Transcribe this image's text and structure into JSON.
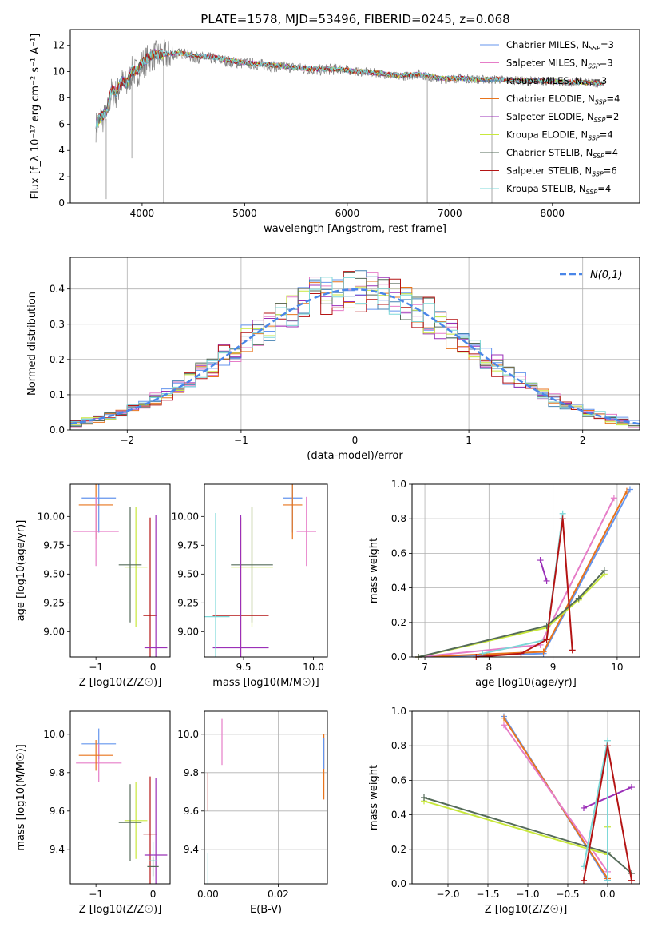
{
  "figure": {
    "title": "PLATE=1578, MJD=53496, FIBERID=0245, z=0.068",
    "models": [
      {
        "name": "Chabrier MILES",
        "nssp": "3",
        "color": "#6495ed"
      },
      {
        "name": "Salpeter MILES",
        "nssp": "3",
        "color": "#e67dc8"
      },
      {
        "name": "Kroupa MILES",
        "nssp": "3",
        "color": "#4682b4"
      },
      {
        "name": "Chabrier ELODIE",
        "nssp": "4",
        "color": "#e8741c"
      },
      {
        "name": "Salpeter ELODIE",
        "nssp": "2",
        "color": "#9b30b8"
      },
      {
        "name": "Kroupa ELODIE",
        "nssp": "4",
        "color": "#c8e83c"
      },
      {
        "name": "Chabrier STELIB",
        "nssp": "4",
        "color": "#556b5a"
      },
      {
        "name": "Salpeter STELIB",
        "nssp": "6",
        "color": "#b41414"
      },
      {
        "name": "Kroupa STELIB",
        "nssp": "4",
        "color": "#7dd8d8"
      }
    ]
  },
  "chart_data": [
    {
      "id": "spectrum",
      "type": "line",
      "xlabel": "wavelength [Angstrom, rest frame]",
      "ylabel": "Flux [f_λ 10⁻¹⁷ erg cm⁻² s⁻¹ A⁻¹]",
      "xlim": [
        3300,
        8850
      ],
      "ylim": [
        0,
        13.2
      ],
      "xticks": [
        4000,
        5000,
        6000,
        7000,
        8000
      ],
      "yticks": [
        0,
        2,
        4,
        6,
        8,
        10,
        12
      ],
      "grid": false,
      "legend": "right",
      "data_series": {
        "name": "data",
        "color": "#808080",
        "x": [
          3550,
          3600,
          3650,
          3700,
          3750,
          3800,
          3850,
          3900,
          3950,
          4000,
          4100,
          4200,
          4300,
          4400,
          4500,
          4700,
          4900,
          5100,
          5300,
          5500,
          5700,
          5900,
          6100,
          6300,
          6500,
          6700,
          6900,
          7100,
          7300,
          7500,
          7700,
          7900,
          8100,
          8300,
          8500
        ],
        "y": [
          5.8,
          6.5,
          6.4,
          8.4,
          8.3,
          9.2,
          8.9,
          10.0,
          9.9,
          10.6,
          11.2,
          11.2,
          11.3,
          11.4,
          11.1,
          11.0,
          10.7,
          10.6,
          10.4,
          10.3,
          10.1,
          10.2,
          10.0,
          9.9,
          9.6,
          9.8,
          9.4,
          9.5,
          9.4,
          9.4,
          9.3,
          9.3,
          9.2,
          9.2,
          9.1
        ]
      },
      "model_y": [
        6.0,
        6.6,
        6.8,
        8.6,
        8.5,
        9.3,
        9.1,
        10.1,
        10.0,
        10.7,
        11.3,
        11.3,
        11.4,
        11.4,
        11.2,
        11.1,
        10.8,
        10.6,
        10.5,
        10.3,
        10.2,
        10.2,
        10.0,
        9.9,
        9.7,
        9.8,
        9.5,
        9.5,
        9.4,
        9.4,
        9.3,
        9.3,
        9.2,
        9.2,
        9.1
      ]
    },
    {
      "id": "residuals",
      "type": "line",
      "xlabel": "(data-model)/error",
      "ylabel": "Normed distribution",
      "xlim": [
        -2.5,
        2.5
      ],
      "ylim": [
        0,
        0.49
      ],
      "xticks": [
        -2,
        -1,
        0,
        1,
        2
      ],
      "yticks": [
        0.0,
        0.1,
        0.2,
        0.3,
        0.4
      ],
      "grid": true,
      "legend": "top-right",
      "legend_label": "N(0,1)",
      "bin_width": 0.1
    },
    {
      "id": "age-vs-Z",
      "type": "scatter",
      "xlabel": "Z [log10(Z/Z☉)]",
      "ylabel": "age [log10(age/yr)]",
      "xlim": [
        -1.45,
        0.3
      ],
      "ylim": [
        8.78,
        10.28
      ],
      "xticks": [
        -1,
        0
      ],
      "yticks": [
        9.0,
        9.25,
        9.5,
        9.75,
        10.0
      ],
      "grid": false,
      "points": [
        {
          "model": 0,
          "x": -0.95,
          "y": 10.16,
          "xerr": 0.3,
          "yerr": 0.3
        },
        {
          "model": 3,
          "x": -1.0,
          "y": 10.1,
          "xerr": 0.3,
          "yerr": 0.3
        },
        {
          "model": 1,
          "x": -1.0,
          "y": 9.87,
          "xerr": 0.4,
          "yerr": 0.3
        },
        {
          "model": 5,
          "x": -0.3,
          "y": 9.56,
          "xerr": 0.2,
          "yerr": 0.52
        },
        {
          "model": 6,
          "x": -0.4,
          "y": 9.58,
          "xerr": 0.2,
          "yerr": 0.5
        },
        {
          "model": 7,
          "x": -0.05,
          "y": 9.14,
          "xerr": 0.12,
          "yerr": 0.85
        },
        {
          "model": 4,
          "x": 0.05,
          "y": 8.86,
          "xerr": 0.2,
          "yerr": 1.15
        }
      ]
    },
    {
      "id": "age-vs-mass",
      "type": "scatter",
      "xlabel": "mass [log10(M/M☉)]",
      "ylabel": "",
      "xlim": [
        9.22,
        10.1
      ],
      "ylim": [
        8.78,
        10.28
      ],
      "xticks": [
        9.5,
        10.0
      ],
      "yticks": [
        9.0,
        9.25,
        9.5,
        9.75,
        10.0
      ],
      "grid": false,
      "points": [
        {
          "model": 0,
          "x": 9.85,
          "y": 10.16,
          "xerr": 0.07,
          "yerr": 0.3
        },
        {
          "model": 3,
          "x": 9.85,
          "y": 10.1,
          "xerr": 0.07,
          "yerr": 0.3
        },
        {
          "model": 1,
          "x": 9.95,
          "y": 9.87,
          "xerr": 0.07,
          "yerr": 0.3
        },
        {
          "model": 5,
          "x": 9.56,
          "y": 9.56,
          "xerr": 0.15,
          "yerr": 0.52
        },
        {
          "model": 6,
          "x": 9.56,
          "y": 9.58,
          "xerr": 0.15,
          "yerr": 0.5
        },
        {
          "model": 7,
          "x": 9.48,
          "y": 9.14,
          "xerr": 0.2,
          "yerr": 0.85
        },
        {
          "model": 4,
          "x": 9.48,
          "y": 8.86,
          "xerr": 0.2,
          "yerr": 1.15
        },
        {
          "model": 8,
          "x": 9.3,
          "y": 9.13,
          "xerr": 0.1,
          "yerr": 0.9
        }
      ]
    },
    {
      "id": "weight-vs-age",
      "type": "line",
      "xlabel": "age [log10(age/yr)]",
      "ylabel": "mass weight",
      "xlim": [
        6.8,
        10.35
      ],
      "ylim": [
        0.0,
        1.0
      ],
      "xticks": [
        7,
        8,
        9,
        10
      ],
      "yticks": [
        0.0,
        0.2,
        0.4,
        0.6,
        0.8,
        1.0
      ],
      "grid": true,
      "series": [
        {
          "model": 0,
          "x": [
            6.9,
            8.85,
            10.2
          ],
          "y": [
            0.0,
            0.02,
            0.97
          ]
        },
        {
          "model": 3,
          "x": [
            6.9,
            8.85,
            10.15
          ],
          "y": [
            0.0,
            0.03,
            0.96
          ]
        },
        {
          "model": 1,
          "x": [
            6.9,
            8.8,
            9.95
          ],
          "y": [
            0.0,
            0.07,
            0.92
          ]
        },
        {
          "model": 5,
          "x": [
            6.9,
            8.9,
            9.4,
            9.8
          ],
          "y": [
            0.0,
            0.17,
            0.33,
            0.48
          ]
        },
        {
          "model": 6,
          "x": [
            6.9,
            8.9,
            9.4,
            9.8
          ],
          "y": [
            0.0,
            0.18,
            0.34,
            0.5
          ]
        },
        {
          "model": 4,
          "x": [
            8.8,
            8.9
          ],
          "y": [
            0.56,
            0.44
          ]
        },
        {
          "model": 8,
          "x": [
            7.9,
            8.9,
            9.15
          ],
          "y": [
            0.02,
            0.1,
            0.83
          ]
        },
        {
          "model": 7,
          "x": [
            7.8,
            8.5,
            8.9,
            9.15,
            9.3
          ],
          "y": [
            0.0,
            0.02,
            0.1,
            0.8,
            0.04
          ]
        }
      ]
    },
    {
      "id": "mass-vs-Z",
      "type": "scatter",
      "xlabel": "Z [log10(Z/Z☉)]",
      "ylabel": "mass [log10(M/M☉)]",
      "xlim": [
        -1.45,
        0.3
      ],
      "ylim": [
        9.22,
        10.12
      ],
      "xticks": [
        -1,
        0
      ],
      "yticks": [
        9.4,
        9.6,
        9.8,
        10.0
      ],
      "grid": false,
      "points": [
        {
          "model": 0,
          "x": -0.95,
          "y": 9.95,
          "xerr": 0.3,
          "yerr": 0.08
        },
        {
          "model": 1,
          "x": -0.95,
          "y": 9.85,
          "xerr": 0.4,
          "yerr": 0.1
        },
        {
          "model": 3,
          "x": -1.0,
          "y": 9.89,
          "xerr": 0.3,
          "yerr": 0.08
        },
        {
          "model": 5,
          "x": -0.3,
          "y": 9.55,
          "xerr": 0.2,
          "yerr": 0.2
        },
        {
          "model": 6,
          "x": -0.4,
          "y": 9.54,
          "xerr": 0.2,
          "yerr": 0.2
        },
        {
          "model": 7,
          "x": -0.05,
          "y": 9.48,
          "xerr": 0.12,
          "yerr": 0.3
        },
        {
          "model": 4,
          "x": 0.05,
          "y": 9.37,
          "xerr": 0.2,
          "yerr": 0.4
        },
        {
          "model": 8,
          "x": 0.0,
          "y": 9.34,
          "xerr": 0.08,
          "yerr": 0.1
        },
        {
          "model": 6,
          "x": 0.0,
          "y": 9.31,
          "xerr": 0.1,
          "yerr": 0.05
        }
      ]
    },
    {
      "id": "mass-vs-EBV",
      "type": "scatter",
      "xlabel": "E(B-V)",
      "ylabel": "",
      "xlim": [
        -0.001,
        0.034
      ],
      "ylim": [
        9.22,
        10.12
      ],
      "xticks": [
        0.0,
        0.02
      ],
      "yticks": [
        9.4,
        9.6,
        9.8,
        10.0
      ],
      "grid": true,
      "points": [
        {
          "model": 1,
          "x": 0.004,
          "y": 9.96,
          "yerr": 0.12
        },
        {
          "model": 3,
          "x": 0.033,
          "y": 9.83,
          "yerr": 0.17
        },
        {
          "model": 0,
          "x": 0.033,
          "y": 9.9,
          "yerr": 0.08
        },
        {
          "model": 7,
          "x": 0.0,
          "y": 9.7,
          "yerr": 0.1
        },
        {
          "model": 8,
          "x": 0.0,
          "y": 9.3,
          "yerr": 0.08
        }
      ]
    },
    {
      "id": "weight-vs-Z",
      "type": "line",
      "xlabel": "Z [log10(Z/Z☉)]",
      "ylabel": "mass weight",
      "xlim": [
        -2.45,
        0.4
      ],
      "ylim": [
        0.0,
        1.0
      ],
      "xticks": [
        -2.0,
        -1.5,
        -1.0,
        -0.5,
        0.0
      ],
      "yticks": [
        0.0,
        0.2,
        0.4,
        0.6,
        0.8,
        1.0
      ],
      "grid": true,
      "series": [
        {
          "model": 0,
          "x": [
            -1.3,
            0.0
          ],
          "y": [
            0.97,
            0.02
          ]
        },
        {
          "model": 3,
          "x": [
            -1.3,
            0.0
          ],
          "y": [
            0.96,
            0.03
          ]
        },
        {
          "model": 1,
          "x": [
            -1.3,
            0.0
          ],
          "y": [
            0.92,
            0.07
          ]
        },
        {
          "model": 5,
          "x": [
            -2.3,
            0.0,
            0.0
          ],
          "y": [
            0.48,
            0.17,
            0.33
          ]
        },
        {
          "model": 6,
          "x": [
            -2.3,
            0.0,
            0.3
          ],
          "y": [
            0.5,
            0.18,
            0.06
          ]
        },
        {
          "model": 4,
          "x": [
            -0.3,
            0.3
          ],
          "y": [
            0.44,
            0.56
          ]
        },
        {
          "model": 8,
          "x": [
            -0.3,
            0.0,
            0.0
          ],
          "y": [
            0.1,
            0.83,
            0.02
          ]
        },
        {
          "model": 7,
          "x": [
            -0.3,
            0.0,
            0.3
          ],
          "y": [
            0.02,
            0.8,
            0.02
          ]
        }
      ]
    }
  ]
}
